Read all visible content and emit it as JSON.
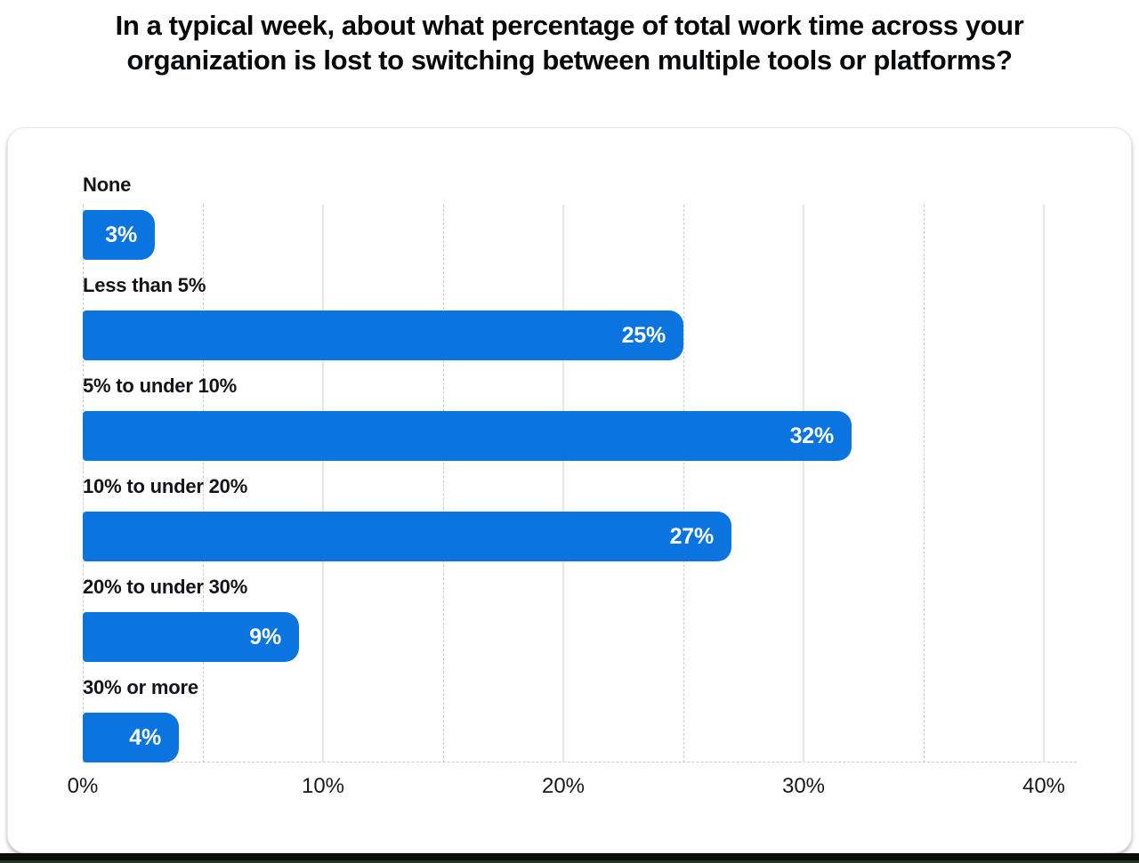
{
  "header": {
    "question_title": "In a typical week, about what percentage of total work time across your\norganization is lost to switching between multiple tools or platforms?"
  },
  "colors": {
    "bar_fill": "#0b74de",
    "bar_value_text": "#ffffff",
    "title_text": "#07080a",
    "category_label_text": "#121419",
    "tick_label_text": "#15181d",
    "gridline_major": "#e4e6ec",
    "gridline_minor_dashed": "#c6cbd4",
    "card_background": "#ffffff",
    "card_border": "#e5e6e8",
    "page_background": "#ffffff",
    "bottom_strip": "#0a0b0a"
  },
  "chart_data": {
    "type": "bar",
    "orientation": "horizontal",
    "title": "",
    "xlabel": "",
    "ylabel": "",
    "categories": [
      "None",
      "Less than 5%",
      "5% to under 10%",
      "10% to under 20%",
      "20% to under 30%",
      "30% or more"
    ],
    "values": [
      3,
      25,
      32,
      27,
      9,
      4
    ],
    "value_labels": [
      "3%",
      "25%",
      "32%",
      "27%",
      "9%",
      "4%"
    ],
    "xlim": [
      0,
      40
    ],
    "xticks": [
      0,
      10,
      20,
      30,
      40
    ],
    "xtick_labels": [
      "0%",
      "10%",
      "20%",
      "30%",
      "40%"
    ],
    "minor_gridline_step": 5,
    "grid": "vertical; major lines solid at 10% steps, minor lines dashed at 5% steps, dashed baseline",
    "legend": "none"
  }
}
